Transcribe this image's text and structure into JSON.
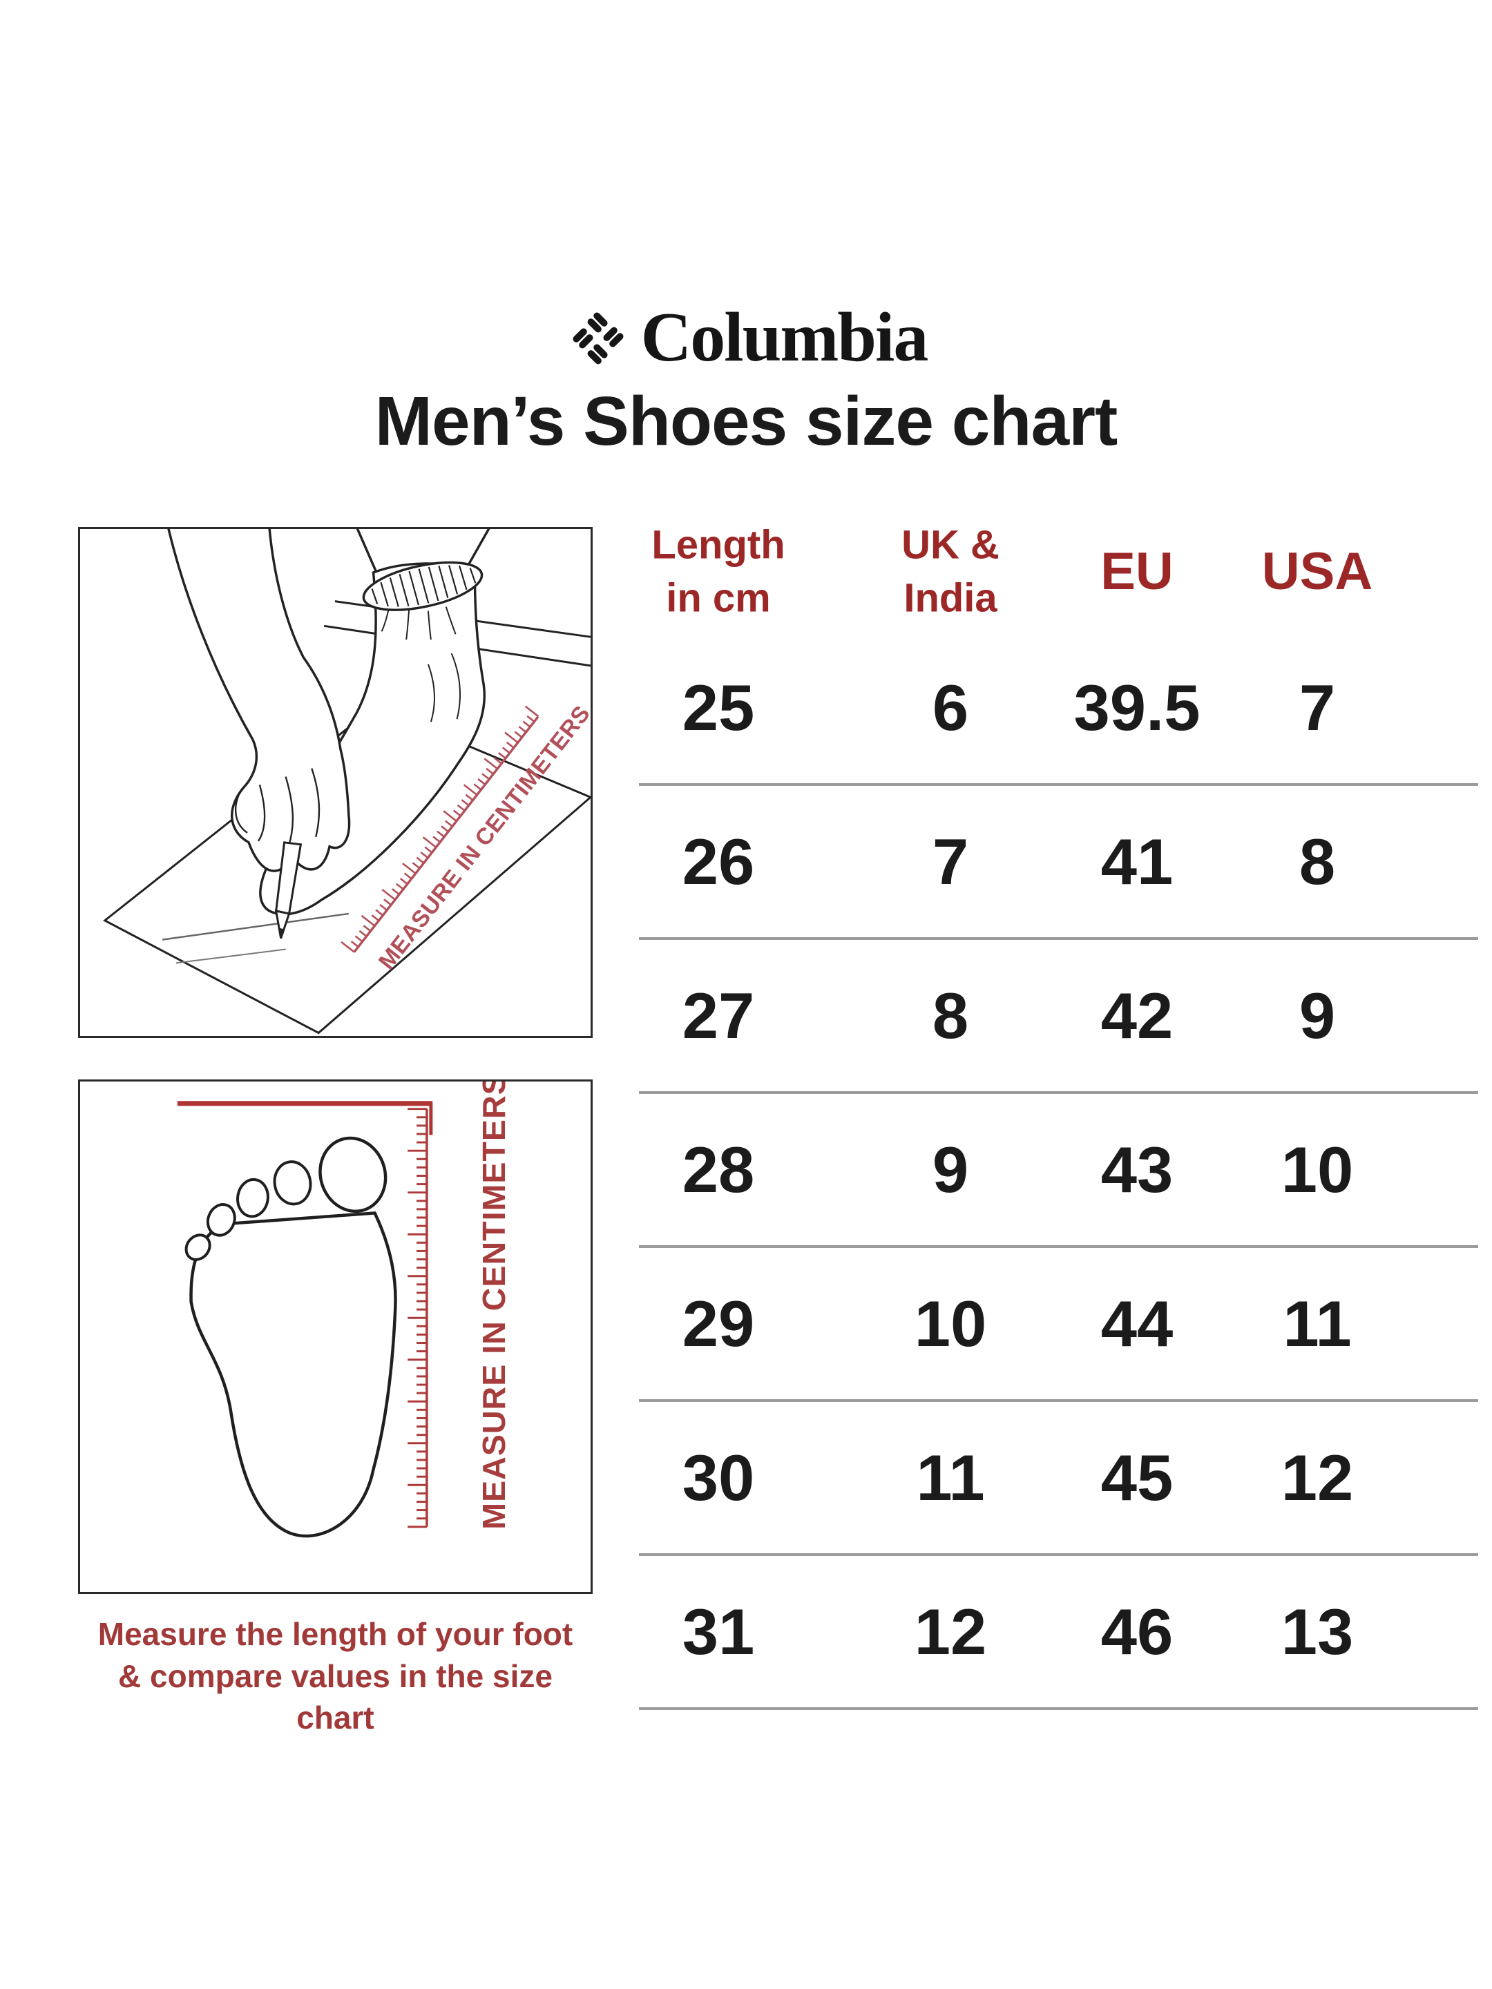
{
  "brand": {
    "name": "Columbia",
    "gem_icon": "columbia-gem-icon"
  },
  "title": "Men’s Shoes size chart",
  "chart_data": {
    "type": "table",
    "title": "Men’s Shoes size chart",
    "columns": [
      "Length in cm",
      "UK & India",
      "EU",
      "USA"
    ],
    "column_header_lines": [
      [
        "Length",
        "in cm"
      ],
      [
        "UK &",
        "India"
      ],
      [
        "EU"
      ],
      [
        "USA"
      ]
    ],
    "rows": [
      [
        "25",
        "6",
        "39.5",
        "7"
      ],
      [
        "26",
        "7",
        "41",
        "8"
      ],
      [
        "27",
        "8",
        "42",
        "9"
      ],
      [
        "28",
        "9",
        "43",
        "10"
      ],
      [
        "29",
        "10",
        "44",
        "11"
      ],
      [
        "30",
        "11",
        "45",
        "12"
      ],
      [
        "31",
        "12",
        "46",
        "13"
      ]
    ]
  },
  "rulers": {
    "measure_box_label": "MEASURE IN CENTIMETERS",
    "footprint_box_label": "MEASURE IN CENTIMETERS"
  },
  "caption": {
    "line1": "Measure the length of your foot",
    "line2": "& compare values in the size chart"
  },
  "colors": {
    "header_red": "#9c2727",
    "caption_red": "#a23939",
    "ruler_red": "#ad3a3a",
    "measure_line_red": "#b03434",
    "diagonal_ruler_red": "#b25059",
    "text_black": "#1b1b1b",
    "divider_gray": "#9b9b9b",
    "line_art": "#222222"
  }
}
